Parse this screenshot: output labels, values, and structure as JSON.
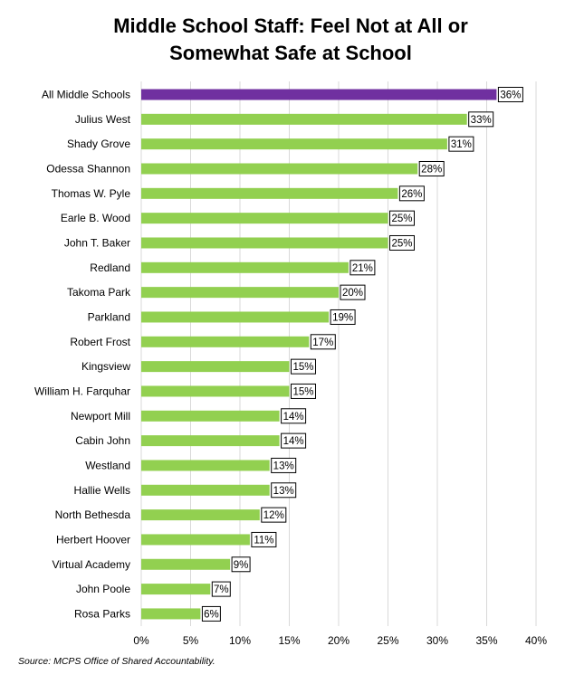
{
  "chart_data": {
    "type": "bar",
    "orientation": "horizontal",
    "title_lines": [
      "Middle School Staff: Feel Not at All or",
      "Somewhat Safe at School"
    ],
    "categories": [
      "All Middle Schools",
      "Julius West",
      "Shady Grove",
      "Odessa Shannon",
      "Thomas W. Pyle",
      "Earle B. Wood",
      "John T. Baker",
      "Redland",
      "Takoma Park",
      "Parkland",
      "Robert Frost",
      "Kingsview",
      "William H. Farquhar",
      "Newport Mill",
      "Cabin John",
      "Westland",
      "Hallie Wells",
      "North Bethesda",
      "Herbert Hoover",
      "Virtual Academy",
      "John Poole",
      "Rosa Parks"
    ],
    "values": [
      36,
      33,
      31,
      28,
      26,
      25,
      25,
      21,
      20,
      19,
      17,
      15,
      15,
      14,
      14,
      13,
      13,
      12,
      11,
      9,
      7,
      6
    ],
    "data_labels": [
      "36%",
      "33%",
      "31%",
      "28%",
      "26%",
      "25%",
      "25%",
      "21%",
      "20%",
      "19%",
      "17%",
      "15%",
      "15%",
      "14%",
      "14%",
      "13%",
      "13%",
      "12%",
      "11%",
      "9%",
      "7%",
      "6%"
    ],
    "xlim": [
      0,
      40
    ],
    "x_ticks": [
      "0%",
      "5%",
      "10%",
      "15%",
      "20%",
      "25%",
      "30%",
      "35%",
      "40%"
    ],
    "grid": "vertical",
    "colors": {
      "highlight": "#7030a0",
      "bars": "#92d050"
    },
    "highlight_index": 0,
    "source": "Source: MCPS Office of Shared Accountability."
  }
}
